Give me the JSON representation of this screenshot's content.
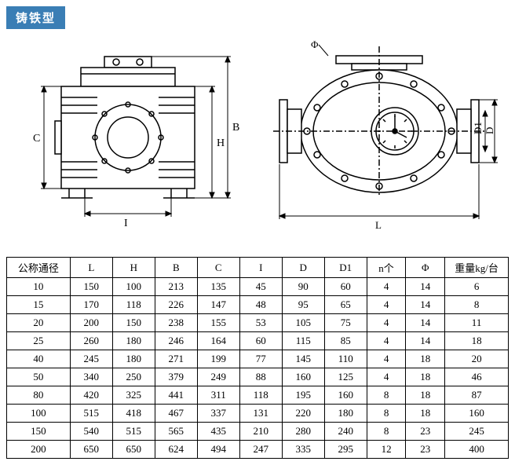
{
  "header": {
    "badge": "铸铁型"
  },
  "drawing_labels": {
    "left_C": "C",
    "left_H": "H",
    "left_B": "B",
    "left_I": "I",
    "right_Phi": "Φ",
    "right_D1": "D1",
    "right_D": "D",
    "right_L": "L"
  },
  "table": {
    "columns": [
      "公称通径",
      "L",
      "H",
      "B",
      "C",
      "I",
      "D",
      "D1",
      "n个",
      "Φ",
      "重量kg/台"
    ],
    "rows": [
      [
        "10",
        "150",
        "100",
        "213",
        "135",
        "45",
        "90",
        "60",
        "4",
        "14",
        "6"
      ],
      [
        "15",
        "170",
        "118",
        "226",
        "147",
        "48",
        "95",
        "65",
        "4",
        "14",
        "8"
      ],
      [
        "20",
        "200",
        "150",
        "238",
        "155",
        "53",
        "105",
        "75",
        "4",
        "14",
        "11"
      ],
      [
        "25",
        "260",
        "180",
        "246",
        "164",
        "60",
        "115",
        "85",
        "4",
        "14",
        "18"
      ],
      [
        "40",
        "245",
        "180",
        "271",
        "199",
        "77",
        "145",
        "110",
        "4",
        "18",
        "20"
      ],
      [
        "50",
        "340",
        "250",
        "379",
        "249",
        "88",
        "160",
        "125",
        "4",
        "18",
        "46"
      ],
      [
        "80",
        "420",
        "325",
        "441",
        "311",
        "118",
        "195",
        "160",
        "8",
        "18",
        "87"
      ],
      [
        "100",
        "515",
        "418",
        "467",
        "337",
        "131",
        "220",
        "180",
        "8",
        "18",
        "160"
      ],
      [
        "150",
        "540",
        "515",
        "565",
        "435",
        "210",
        "280",
        "240",
        "8",
        "23",
        "245"
      ],
      [
        "200",
        "650",
        "650",
        "624",
        "494",
        "247",
        "335",
        "295",
        "12",
        "23",
        "400"
      ]
    ],
    "col_widths": [
      "78",
      "48",
      "48",
      "48",
      "48",
      "48",
      "48",
      "48",
      "44",
      "44",
      "78"
    ]
  },
  "style": {
    "stroke": "#000000",
    "fill_hatch": "#ffffff",
    "badge_bg": "#3a7eb5",
    "badge_fg": "#ffffff"
  }
}
